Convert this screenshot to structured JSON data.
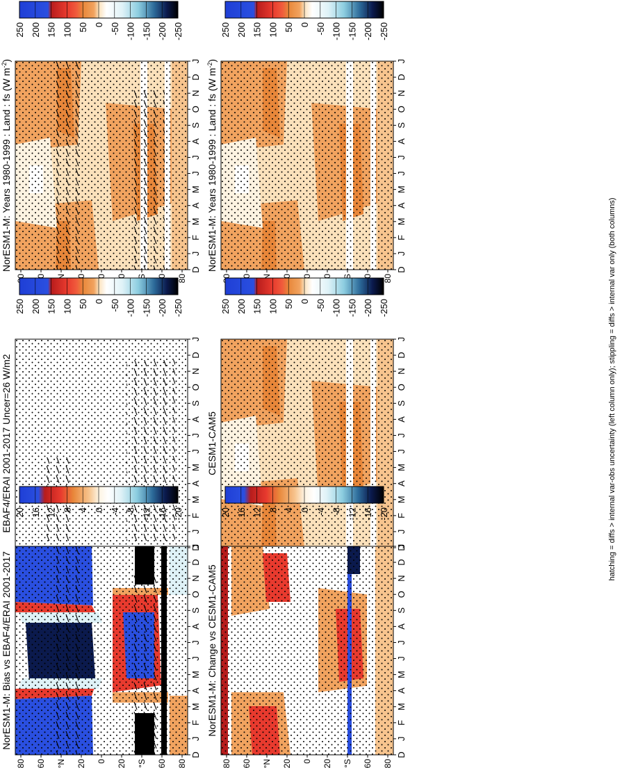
{
  "footer_note": "hatching = diffs > internal var-obs uncertainty (left column only); stippling = diffs > internal var only (both columns)",
  "colors": {
    "orange_dark": "#e8873a",
    "orange": "#f1a35f",
    "orange_light": "#f7c48e",
    "peach": "#fbe1bb",
    "cream": "#fdf3e1",
    "white": "#ffffff",
    "pale_blue": "#dff2f7",
    "red": "#e83a2e",
    "dark_red": "#b71c1c",
    "blue": "#2a4fe0",
    "navy": "#0b1a4d",
    "black": "#000000"
  },
  "colorbars": [
    {
      "id": "cb-main-left",
      "labels": [
        "250",
        "200",
        "150",
        "100",
        "50",
        "0",
        "-50",
        "-100",
        "-150",
        "-200",
        "-250"
      ]
    },
    {
      "id": "cb-main-right",
      "labels": [
        "250",
        "200",
        "150",
        "100",
        "50",
        "0",
        "-50",
        "-100",
        "-150",
        "-200",
        "-250"
      ]
    },
    {
      "id": "cb-obs",
      "labels": [
        "250",
        "200",
        "150",
        "100",
        "50",
        "0",
        "-50",
        "-100",
        "-150",
        "-200",
        "-250"
      ]
    },
    {
      "id": "cb-cesm",
      "labels": [
        "250",
        "200",
        "150",
        "100",
        "50",
        "0",
        "-50",
        "-100",
        "-150",
        "-200",
        "-250"
      ]
    },
    {
      "id": "cb-bias",
      "labels": [
        "20",
        "16",
        "12",
        "8",
        "4",
        "0",
        "-4",
        "-8",
        "-12",
        "-16",
        "-20"
      ]
    },
    {
      "id": "cb-change",
      "labels": [
        "20",
        "16",
        "12",
        "8",
        "4",
        "0",
        "-4",
        "-8",
        "-12",
        "-16",
        "-20"
      ]
    }
  ],
  "chart_data": [
    {
      "id": "nor-years",
      "type": "heatmap",
      "title": "NorESM1-M: Years 1980-1999 : Land : fs (W m",
      "title_sup": "-2",
      "title_end": ")",
      "x_ticks": [
        "D",
        "J",
        "F",
        "M",
        "A",
        "M",
        "J",
        "J",
        "A",
        "S",
        "O",
        "N",
        "D",
        "J"
      ],
      "y_ticks": [
        "80",
        "60",
        "°N",
        "20",
        "0",
        "20",
        "°S",
        "60",
        "80"
      ],
      "colorbar_range": [
        -250,
        250
      ],
      "hatching": true,
      "stippling": true
    },
    {
      "id": "obs",
      "type": "heatmap",
      "title": "EBAF4/ERAI 2001-2017 Uncer=26 W/m2",
      "x_ticks": [
        "D",
        "J",
        "F",
        "M",
        "A",
        "M",
        "J",
        "J",
        "A",
        "S",
        "O",
        "N",
        "D",
        "J"
      ],
      "y_ticks": [
        "80",
        "60",
        "°N",
        "20",
        "0",
        "20",
        "°S",
        "60",
        "80"
      ],
      "colorbar_range": [
        -250,
        250
      ],
      "hatching": true,
      "stippling": true
    },
    {
      "id": "bias",
      "type": "heatmap",
      "title": "NorESM1-M: Bias vs EBAF4/ERAI 2001-2017",
      "x_ticks": [
        "D",
        "J",
        "F",
        "M",
        "A",
        "M",
        "J",
        "J",
        "A",
        "S",
        "O",
        "N",
        "D",
        "J"
      ],
      "y_ticks": [
        "80",
        "60",
        "°N",
        "20",
        "0",
        "20",
        "°S",
        "60",
        "80"
      ],
      "colorbar_range": [
        -20,
        20
      ],
      "hatching": true,
      "stippling": true
    },
    {
      "id": "nor-years-2",
      "type": "heatmap",
      "title": "NorESM1-M: Years 1980-1999 : Land : fs (W m",
      "title_sup": "-2",
      "title_end": ")",
      "x_ticks": [
        "D",
        "J",
        "F",
        "M",
        "A",
        "M",
        "J",
        "J",
        "A",
        "S",
        "O",
        "N",
        "D",
        "J"
      ],
      "y_ticks": [
        "80",
        "60",
        "°N",
        "20",
        "0",
        "20",
        "°S",
        "60",
        "80"
      ],
      "colorbar_range": [
        -250,
        250
      ],
      "hatching": false,
      "stippling": true
    },
    {
      "id": "cesm",
      "type": "heatmap",
      "title": "CESM1-CAM5",
      "x_ticks": [
        "D",
        "J",
        "F",
        "M",
        "A",
        "M",
        "J",
        "J",
        "A",
        "S",
        "O",
        "N",
        "D",
        "J"
      ],
      "y_ticks": [
        "80",
        "60",
        "°N",
        "20",
        "0",
        "20",
        "°S",
        "60",
        "80"
      ],
      "colorbar_range": [
        -250,
        250
      ],
      "hatching": false,
      "stippling": true
    },
    {
      "id": "change",
      "type": "heatmap",
      "title": "NorESM1-M: Change vs CESM1-CAM5",
      "x_ticks": [
        "D",
        "J",
        "F",
        "M",
        "A",
        "M",
        "J",
        "J",
        "A",
        "S",
        "O",
        "N",
        "D",
        "J"
      ],
      "y_ticks": [
        "80",
        "60",
        "°N",
        "20",
        "0",
        "20",
        "°S",
        "60",
        "80"
      ],
      "colorbar_range": [
        -20,
        20
      ],
      "hatching": false,
      "stippling": true
    }
  ]
}
